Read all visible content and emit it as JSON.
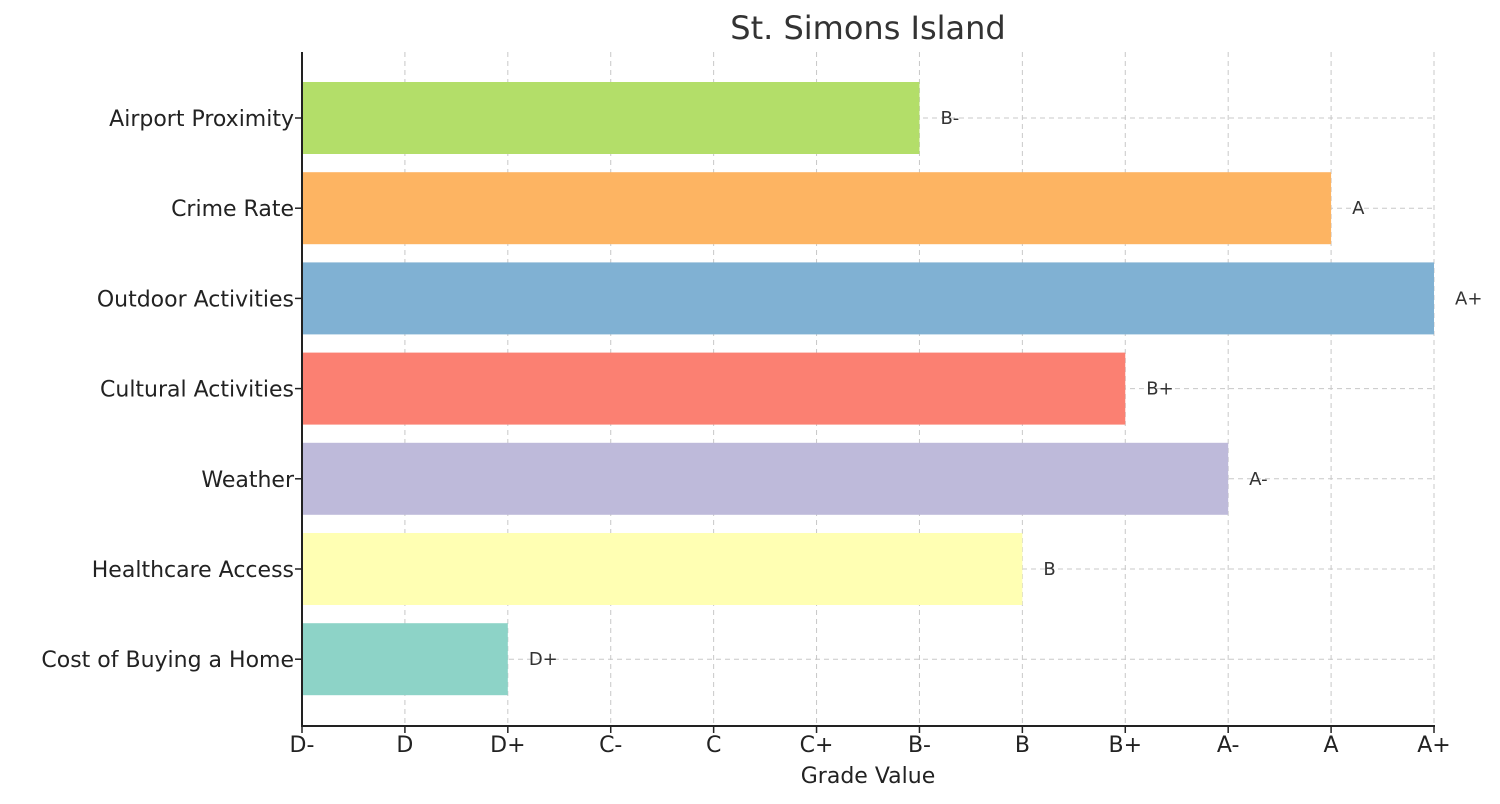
{
  "chart_data": {
    "type": "bar",
    "orientation": "horizontal",
    "title": "St. Simons Island",
    "xlabel": "Grade Value",
    "ylabel": "",
    "x_tick_labels": [
      "D-",
      "D",
      "D+",
      "C-",
      "C",
      "C+",
      "B-",
      "B",
      "B+",
      "A-",
      "A",
      "A+"
    ],
    "xlim": [
      0,
      11
    ],
    "grid": true,
    "categories": [
      "Airport Proximity",
      "Crime Rate",
      "Outdoor Activities",
      "Cultural Activities",
      "Weather",
      "Healthcare Access",
      "Cost of Buying a Home"
    ],
    "values": [
      6,
      10,
      11,
      8,
      9,
      7,
      2
    ],
    "value_labels": [
      "B-",
      "A",
      "A+",
      "B+",
      "A-",
      "B",
      "D+"
    ],
    "colors": [
      "#b3de69",
      "#fdb462",
      "#80b1d3",
      "#fb8072",
      "#bebada",
      "#ffffb3",
      "#8dd3c7"
    ]
  }
}
